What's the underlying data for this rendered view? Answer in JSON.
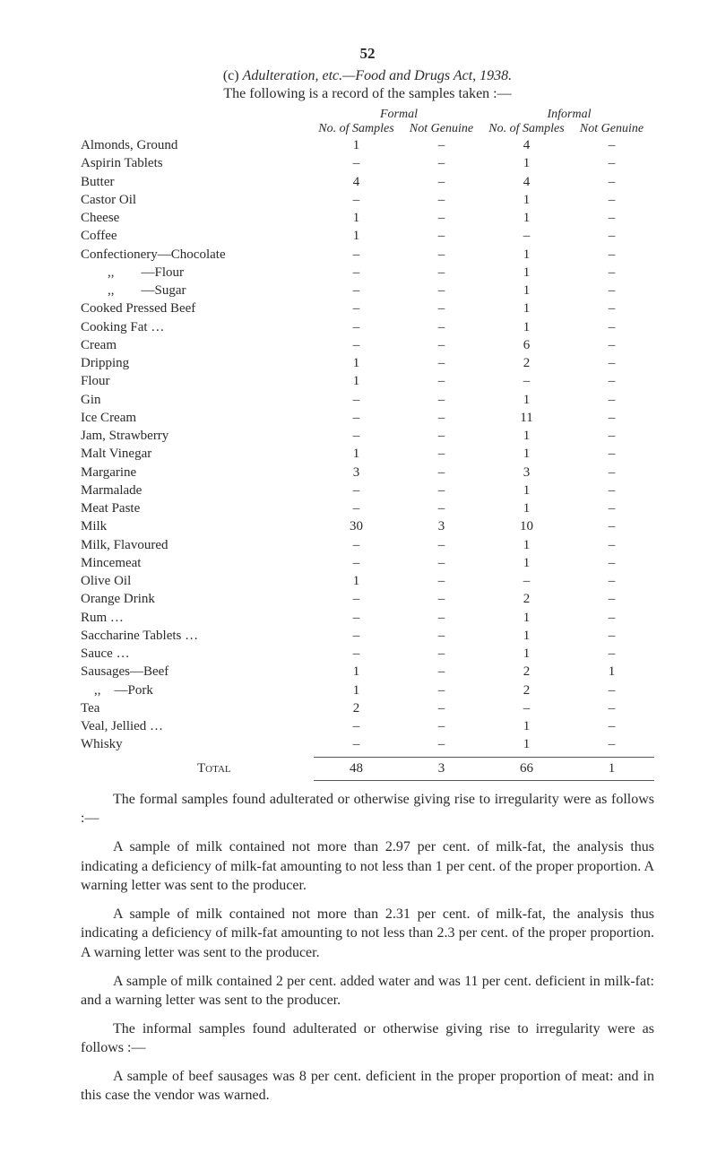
{
  "page_number": "52",
  "section_title_prefix": "(c) ",
  "section_title_italic": "Adulteration, etc.—Food and Drugs Act, 1938.",
  "intro": "The following is a record of the samples taken :—",
  "headers": {
    "group1": "Formal",
    "group2": "Informal",
    "sub1": "No. of Samples",
    "sub2": "Not Genuine",
    "sub3": "No. of Samples",
    "sub4": "Not Genuine"
  },
  "rows": [
    {
      "label": "Almonds, Ground",
      "c": [
        "1",
        "–",
        "4",
        "–"
      ]
    },
    {
      "label": "Aspirin Tablets",
      "c": [
        "–",
        "–",
        "1",
        "–"
      ]
    },
    {
      "label": "Butter",
      "c": [
        "4",
        "–",
        "4",
        "–"
      ]
    },
    {
      "label": "Castor Oil",
      "c": [
        "–",
        "–",
        "1",
        "–"
      ]
    },
    {
      "label": "Cheese",
      "c": [
        "1",
        "–",
        "1",
        "–"
      ]
    },
    {
      "label": "Coffee",
      "c": [
        "1",
        "–",
        "–",
        "–"
      ]
    },
    {
      "label": "Confectionery—Chocolate",
      "c": [
        "–",
        "–",
        "1",
        "–"
      ]
    },
    {
      "label": "        ,,        —Flour",
      "c": [
        "–",
        "–",
        "1",
        "–"
      ]
    },
    {
      "label": "        ,,        —Sugar",
      "c": [
        "–",
        "–",
        "1",
        "–"
      ]
    },
    {
      "label": "Cooked Pressed Beef",
      "c": [
        "–",
        "–",
        "1",
        "–"
      ]
    },
    {
      "label": "Cooking Fat …",
      "c": [
        "–",
        "–",
        "1",
        "–"
      ]
    },
    {
      "label": "Cream",
      "c": [
        "–",
        "–",
        "6",
        "–"
      ]
    },
    {
      "label": "Dripping",
      "c": [
        "1",
        "–",
        "2",
        "–"
      ]
    },
    {
      "label": "Flour",
      "c": [
        "1",
        "–",
        "–",
        "–"
      ]
    },
    {
      "label": "Gin",
      "c": [
        "–",
        "–",
        "1",
        "–"
      ]
    },
    {
      "label": "Ice Cream",
      "c": [
        "–",
        "–",
        "11",
        "–"
      ]
    },
    {
      "label": "Jam, Strawberry",
      "c": [
        "–",
        "–",
        "1",
        "–"
      ]
    },
    {
      "label": "Malt Vinegar",
      "c": [
        "1",
        "–",
        "1",
        "–"
      ]
    },
    {
      "label": "Margarine",
      "c": [
        "3",
        "–",
        "3",
        "–"
      ]
    },
    {
      "label": "Marmalade",
      "c": [
        "–",
        "–",
        "1",
        "–"
      ]
    },
    {
      "label": "Meat Paste",
      "c": [
        "–",
        "–",
        "1",
        "–"
      ]
    },
    {
      "label": "Milk",
      "c": [
        "30",
        "3",
        "10",
        "–"
      ]
    },
    {
      "label": "Milk, Flavoured",
      "c": [
        "–",
        "–",
        "1",
        "–"
      ]
    },
    {
      "label": "Mincemeat",
      "c": [
        "–",
        "–",
        "1",
        "–"
      ]
    },
    {
      "label": "Olive Oil",
      "c": [
        "1",
        "–",
        "–",
        "–"
      ]
    },
    {
      "label": "Orange Drink",
      "c": [
        "–",
        "–",
        "2",
        "–"
      ]
    },
    {
      "label": "Rum …",
      "c": [
        "–",
        "–",
        "1",
        "–"
      ]
    },
    {
      "label": "Saccharine Tablets …",
      "c": [
        "–",
        "–",
        "1",
        "–"
      ]
    },
    {
      "label": "Sauce …",
      "c": [
        "–",
        "–",
        "1",
        "–"
      ]
    },
    {
      "label": "Sausages—Beef",
      "c": [
        "1",
        "–",
        "2",
        "1"
      ]
    },
    {
      "label": "    ,,    —Pork",
      "c": [
        "1",
        "–",
        "2",
        "–"
      ]
    },
    {
      "label": "Tea",
      "c": [
        "2",
        "–",
        "–",
        "–"
      ]
    },
    {
      "label": "Veal, Jellied …",
      "c": [
        "–",
        "–",
        "1",
        "–"
      ]
    },
    {
      "label": "Whisky",
      "c": [
        "–",
        "–",
        "1",
        "–"
      ]
    }
  ],
  "total": {
    "label": "Total",
    "c": [
      "48",
      "3",
      "66",
      "1"
    ]
  },
  "paragraphs": [
    "The formal samples found adulterated or otherwise giving rise to irregularity were as follows :—",
    "A sample of milk contained not more than 2.97 per cent. of milk-fat, the analysis thus indicating a deficiency of milk-fat amount­ing to not less than 1 per cent. of the proper proportion. A warning letter was sent to the producer.",
    "A sample of milk contained not more than 2.31 per cent. of milk-fat, the analysis thus indicating a deficiency of milk-fat amounting to not less than 2.3 per cent. of the proper proportion. A warning letter was sent to the producer.",
    "A sample of milk contained 2 per cent. added water and was 11 per cent. deficient in milk-fat: and a warning letter was sent to the producer.",
    "The informal samples found adulterated or otherwise giving rise to irregularity were as follows :—",
    "A sample of beef sausages was 8 per cent. deficient in the proper proportion of meat: and in this case the vendor was warned."
  ]
}
